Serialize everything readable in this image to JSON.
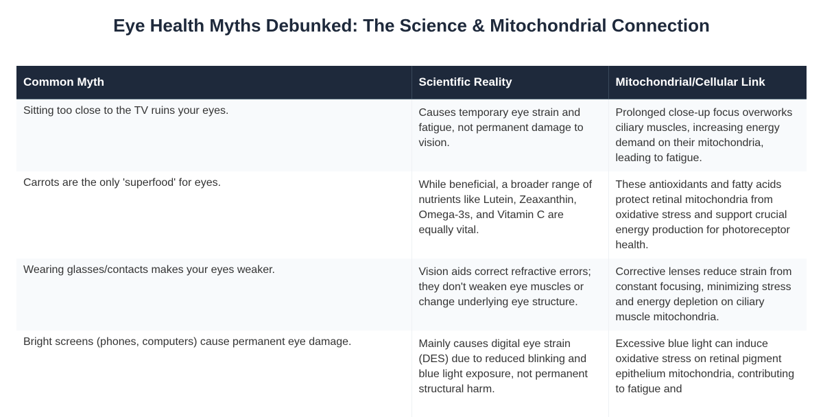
{
  "title": "Eye Health Myths Debunked: The Science & Mitochondrial Connection",
  "table": {
    "headers": [
      "Common Myth",
      "Scientific Reality",
      "Mitochondrial/Cellular Link"
    ],
    "rows": [
      {
        "myth": "Sitting too close to the TV ruins your eyes.",
        "reality": "Causes temporary eye strain and fatigue, not permanent damage to vision.",
        "link": "Prolonged close-up focus overworks ciliary muscles, increasing energy demand on their mitochondria, leading to fatigue."
      },
      {
        "myth": "Carrots are the only 'superfood' for eyes.",
        "reality": "While beneficial, a broader range of nutrients like Lutein, Zeaxanthin, Omega-3s, and Vitamin C are equally vital.",
        "link": "These antioxidants and fatty acids protect retinal mitochondria from oxidative stress and support crucial energy production for photoreceptor health."
      },
      {
        "myth": "Wearing glasses/contacts makes your eyes weaker.",
        "reality": "Vision aids correct refractive errors; they don't weaken eye muscles or change underlying eye structure.",
        "link": "Corrective lenses reduce strain from constant focusing, minimizing stress and energy depletion on ciliary muscle mitochondria."
      },
      {
        "myth": "Bright screens (phones, computers) cause permanent eye damage.",
        "reality": "Mainly causes digital eye strain (DES) due to reduced blinking and blue light exposure, not permanent structural harm.",
        "link": "Excessive blue light can induce oxidative stress on retinal pigment epithelium mitochondria, contributing to fatigue and"
      }
    ]
  }
}
